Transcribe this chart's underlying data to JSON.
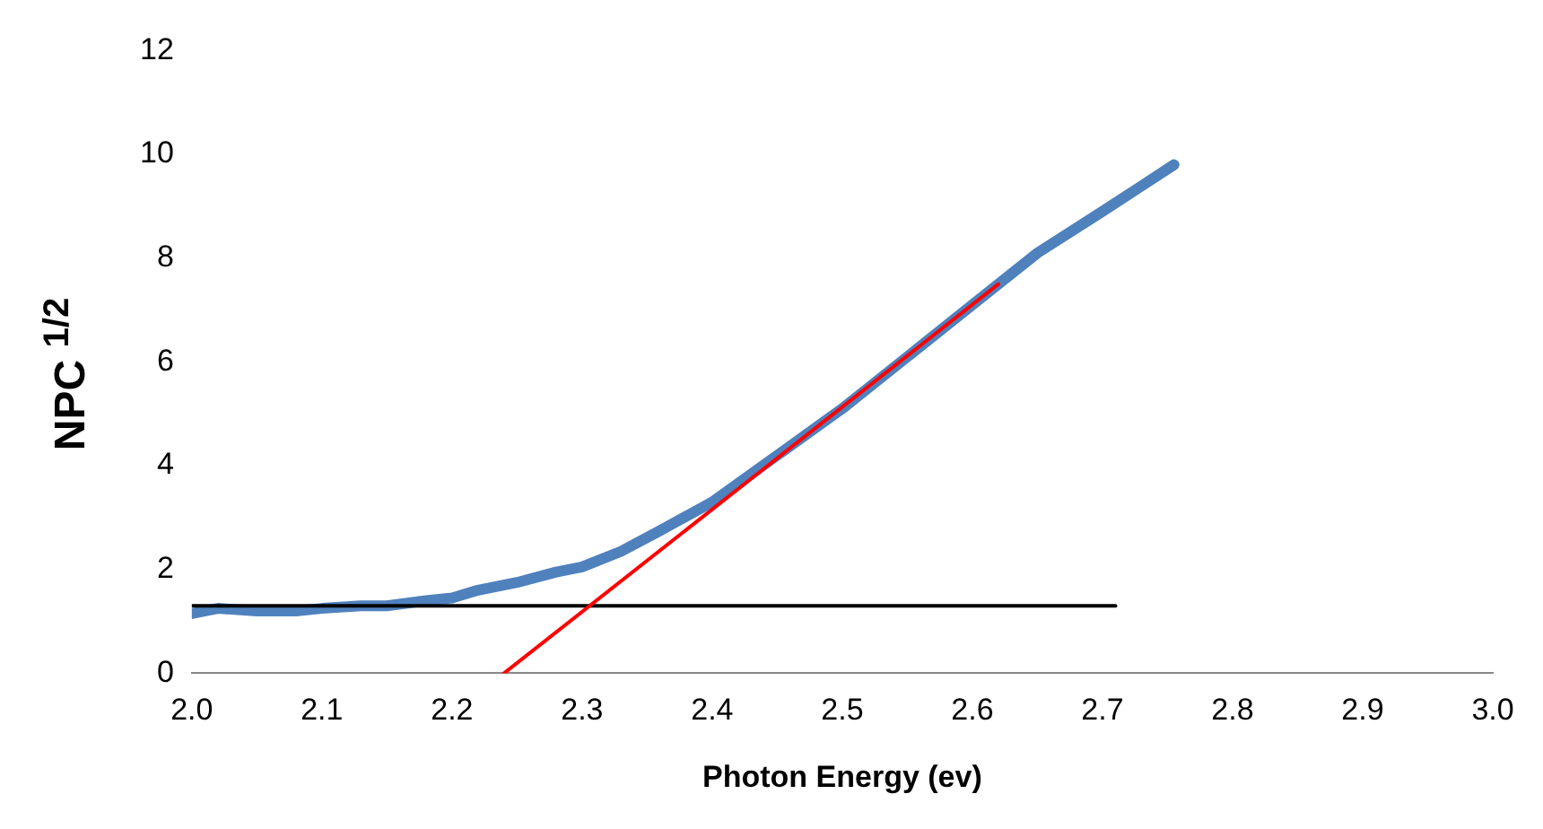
{
  "chart_data": {
    "type": "line",
    "xlabel": "Photon Energy (ev)",
    "ylabel": "NPC $^{1/2}$",
    "series": [
      {
        "color": "#4f81bd",
        "x": [
          2.0,
          2.02,
          2.05,
          2.08,
          2.1,
          2.13,
          2.15,
          2.18,
          2.2,
          2.22,
          2.25,
          2.28,
          2.3,
          2.33,
          2.36,
          2.4,
          2.45,
          2.5,
          2.55,
          2.6,
          2.65,
          2.7,
          2.755
        ],
        "values": [
          1.15,
          1.25,
          1.2,
          1.2,
          1.25,
          1.3,
          1.3,
          1.4,
          1.45,
          1.6,
          1.75,
          1.95,
          2.05,
          2.35,
          2.75,
          3.3,
          4.2,
          5.1,
          6.1,
          7.1,
          8.1,
          8.9,
          9.8
        ]
      },
      {
        "color": "#ff0000",
        "x": [
          2.24,
          2.62
        ],
        "values": [
          0,
          7.5
        ]
      },
      {
        "color": "#000000",
        "x": [
          2.0,
          2.71
        ],
        "values": [
          1.3,
          1.3
        ]
      }
    ],
    "xlim": [
      2.0,
      3.0
    ],
    "xticks": [
      {
        "value": 2.0,
        "label": "2.0"
      },
      {
        "value": 2.1,
        "label": "2.1"
      },
      {
        "value": 2.2,
        "label": "2.2"
      },
      {
        "value": 2.3,
        "label": "2.3"
      },
      {
        "value": 2.4,
        "label": "2.4"
      },
      {
        "value": 2.5,
        "label": "2.5"
      },
      {
        "value": 2.6,
        "label": "2.6"
      },
      {
        "value": 2.7,
        "label": "2.7"
      },
      {
        "value": 2.8,
        "label": "2.8"
      },
      {
        "value": 2.9,
        "label": "2.9"
      },
      {
        "value": 3.0,
        "label": "3.0"
      }
    ],
    "ylim": [
      0,
      12
    ],
    "yticks": [
      0,
      2,
      4,
      6,
      8,
      10,
      12
    ],
    "grid": false,
    "legend": false,
    "marker": "none"
  }
}
